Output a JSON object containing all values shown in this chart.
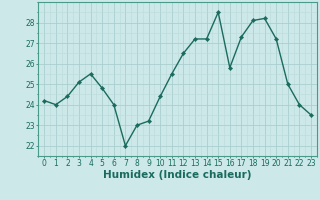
{
  "x": [
    0,
    1,
    2,
    3,
    4,
    5,
    6,
    7,
    8,
    9,
    10,
    11,
    12,
    13,
    14,
    15,
    16,
    17,
    18,
    19,
    20,
    21,
    22,
    23
  ],
  "y": [
    24.2,
    24.0,
    24.4,
    25.1,
    25.5,
    24.8,
    24.0,
    22.0,
    23.0,
    23.2,
    24.4,
    25.5,
    26.5,
    27.2,
    27.2,
    28.5,
    25.8,
    27.3,
    28.1,
    28.2,
    27.2,
    25.0,
    24.0,
    23.5
  ],
  "line_color": "#1a6b5e",
  "marker": "D",
  "marker_size": 2.2,
  "linewidth": 1.0,
  "bg_color": "#cce8e8",
  "grid_major_color": "#aacece",
  "grid_minor_color": "#bddada",
  "xlabel": "Humidex (Indice chaleur)",
  "xlim": [
    -0.5,
    23.5
  ],
  "ylim": [
    21.5,
    29.0
  ],
  "yticks": [
    22,
    23,
    24,
    25,
    26,
    27,
    28
  ],
  "xticks": [
    0,
    1,
    2,
    3,
    4,
    5,
    6,
    7,
    8,
    9,
    10,
    11,
    12,
    13,
    14,
    15,
    16,
    17,
    18,
    19,
    20,
    21,
    22,
    23
  ],
  "tick_fontsize": 5.5,
  "xlabel_fontsize": 7.5
}
